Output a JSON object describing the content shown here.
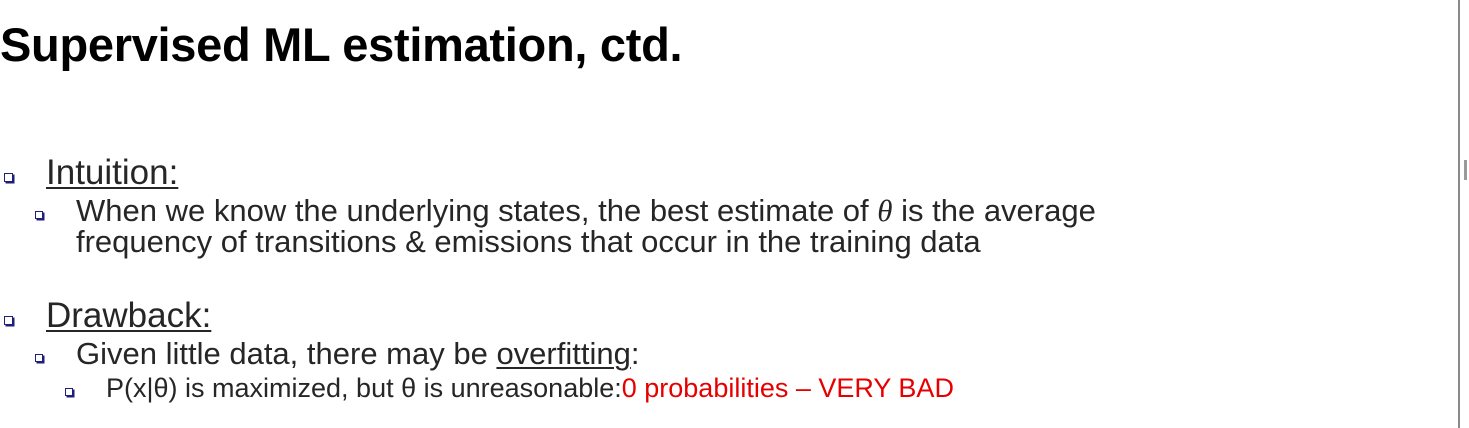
{
  "slide": {
    "title": "Supervised ML estimation, ctd.",
    "sections": [
      {
        "heading": "Intuition:",
        "points": [
          {
            "line1_pre": "When we know the underlying states, the best estimate of ",
            "symbol": "θ",
            "line1_post": " is the average",
            "line2": "frequency of transitions & emissions that occur in the training data"
          }
        ]
      },
      {
        "heading": "Drawback:",
        "points": [
          {
            "pre": "Given little data, there may be ",
            "emphasis": "overfitting",
            "post": ":",
            "subpoints": [
              {
                "text": "P(x|θ) is maximized, but θ is unreasonable:",
                "highlight": "0 probabilities – VERY BAD"
              }
            ]
          }
        ]
      }
    ]
  },
  "colors": {
    "bullet": "#1f1f7a",
    "highlight": "#e60000",
    "title": "#000000",
    "body": "#262626"
  }
}
